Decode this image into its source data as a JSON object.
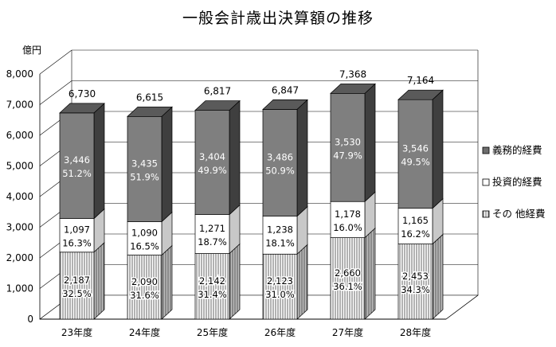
{
  "chart_data": {
    "type": "bar",
    "stacked": true,
    "three_d": true,
    "title": "一般会計歳出決算額の推移",
    "ylabel": "億円",
    "xlabel": "",
    "ylim": [
      0,
      8000
    ],
    "yticks": [
      "0",
      "1,000",
      "2,000",
      "3,000",
      "4,000",
      "5,000",
      "6,000",
      "7,000",
      "8,000"
    ],
    "grid": true,
    "legend_position": "right",
    "categories": [
      "23年度",
      "24年度",
      "25年度",
      "26年度",
      "27年度",
      "28年度"
    ],
    "totals": [
      "6,730",
      "6,615",
      "6,817",
      "6,847",
      "7,368",
      "7,164"
    ],
    "series": [
      {
        "name": "その 他経費",
        "color": "#ffffff",
        "pattern": "vertical-lines",
        "values": [
          2187,
          2090,
          2142,
          2123,
          2660,
          2453
        ],
        "labels": [
          "2,187",
          "2,090",
          "2,142",
          "2,123",
          "2,660",
          "2,453"
        ],
        "percents": [
          "32.5%",
          "31.6%",
          "31.4%",
          "31.0%",
          "36.1%",
          "34.3%"
        ]
      },
      {
        "name": "投資的経費",
        "color": "#ffffff",
        "pattern": "solid",
        "values": [
          1097,
          1090,
          1271,
          1238,
          1178,
          1165
        ],
        "labels": [
          "1,097",
          "1,090",
          "1,271",
          "1,238",
          "1,178",
          "1,165"
        ],
        "percents": [
          "16.3%",
          "16.5%",
          "18.7%",
          "18.1%",
          "16.0%",
          "16.2%"
        ]
      },
      {
        "name": "義務的経費",
        "color": "#808080",
        "pattern": "solid",
        "values": [
          3446,
          3435,
          3404,
          3486,
          3530,
          3546
        ],
        "labels": [
          "3,446",
          "3,435",
          "3,404",
          "3,486",
          "3,530",
          "3,546"
        ],
        "percents": [
          "51.2%",
          "51.9%",
          "49.9%",
          "50.9%",
          "47.9%",
          "49.5%"
        ]
      }
    ],
    "legend_order": [
      "義務的経費",
      "投資的経費",
      "その 他経費"
    ]
  }
}
